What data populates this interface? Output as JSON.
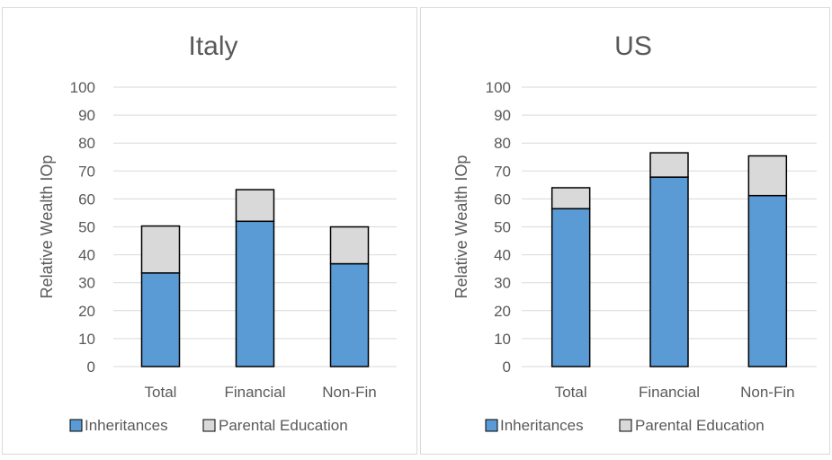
{
  "chart_data": [
    {
      "type": "bar",
      "stacked": true,
      "title": "Italy",
      "ylabel": "Relative Wealth IOp",
      "xlabel": "",
      "categories": [
        "Total",
        "Financial",
        "Non-Fin"
      ],
      "ylim": [
        0,
        100
      ],
      "yticks": [
        "0",
        "10",
        "20",
        "30",
        "40",
        "50",
        "60",
        "70",
        "80",
        "90",
        "100"
      ],
      "grid": true,
      "legend_position": "bottom",
      "series": [
        {
          "name": "Inheritances",
          "values": [
            33.5,
            52,
            36.8
          ],
          "color": "#5B9BD5"
        },
        {
          "name": "Parental Education",
          "values": [
            16.8,
            11.3,
            13.2
          ],
          "color": "#D9D9D9"
        }
      ]
    },
    {
      "type": "bar",
      "stacked": true,
      "title": "US",
      "ylabel": "Relative Wealth IOp",
      "xlabel": "",
      "categories": [
        "Total",
        "Financial",
        "Non-Fin"
      ],
      "ylim": [
        0,
        100
      ],
      "yticks": [
        "0",
        "10",
        "20",
        "30",
        "40",
        "50",
        "60",
        "70",
        "80",
        "90",
        "100"
      ],
      "grid": true,
      "legend_position": "bottom",
      "series": [
        {
          "name": "Inheritances",
          "values": [
            56.5,
            67.8,
            61.2
          ],
          "color": "#5B9BD5"
        },
        {
          "name": "Parental Education",
          "values": [
            7.5,
            8.7,
            14.2
          ],
          "color": "#D9D9D9"
        }
      ]
    }
  ]
}
